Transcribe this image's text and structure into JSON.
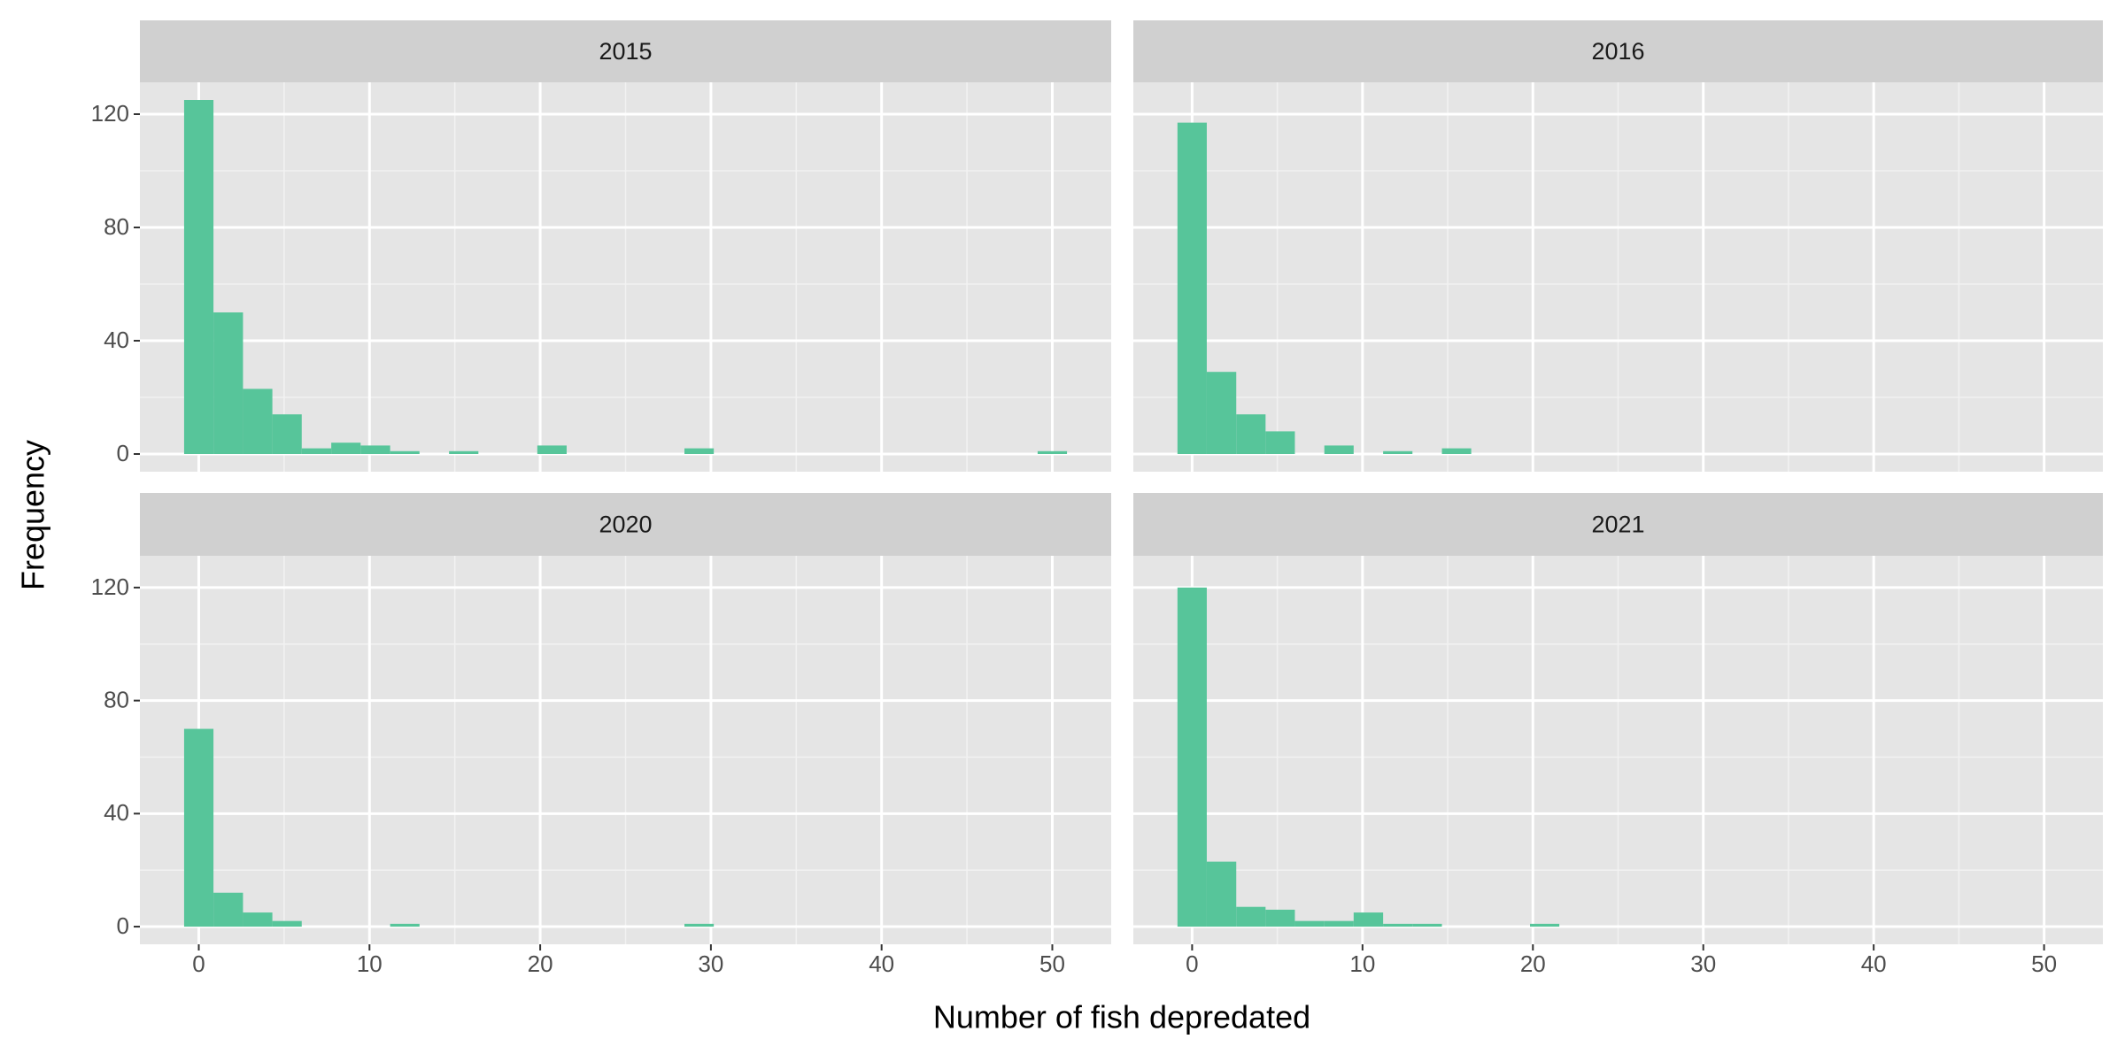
{
  "x_label": "Number of fish depredated",
  "y_label": "Frequency",
  "chart_data": [
    {
      "type": "histogram",
      "title": "2015",
      "color": "#57c59a",
      "bins": [
        -0.86,
        0.86,
        2.59,
        4.31,
        6.03,
        7.76,
        9.48,
        11.21,
        12.93,
        14.66,
        16.38,
        18.1,
        19.83,
        21.55,
        23.28,
        25,
        26.72,
        28.45,
        30.17,
        31.9,
        33.62,
        35.34,
        37.07,
        38.79,
        40.52,
        42.24,
        43.97,
        45.69,
        47.41,
        49.14,
        50.86
      ],
      "values": [
        125,
        50,
        23,
        14,
        2,
        4,
        3,
        1,
        0,
        1,
        0,
        0,
        3,
        0,
        0,
        0,
        0,
        2,
        0,
        0,
        0,
        0,
        0,
        0,
        0,
        0,
        0,
        0,
        0,
        1
      ],
      "xlim": [
        -3.45,
        53.45
      ],
      "xticks": [
        0,
        10,
        20,
        30,
        40,
        50
      ],
      "ylim": [
        -6.25,
        131.25
      ],
      "yticks": [
        0,
        40,
        80,
        120
      ],
      "grid": true
    },
    {
      "type": "histogram",
      "title": "2016",
      "color": "#57c59a",
      "bins": [
        -0.86,
        0.86,
        2.59,
        4.31,
        6.03,
        7.76,
        9.48,
        11.21,
        12.93,
        14.66,
        16.38,
        18.1,
        19.83,
        21.55,
        23.28,
        25,
        26.72,
        28.45,
        30.17,
        31.9,
        33.62,
        35.34,
        37.07,
        38.79,
        40.52,
        42.24,
        43.97,
        45.69,
        47.41,
        49.14,
        50.86
      ],
      "values": [
        117,
        29,
        14,
        8,
        0,
        3,
        0,
        1,
        0,
        2,
        0,
        0,
        0,
        0,
        0,
        0,
        0,
        0,
        0,
        0,
        0,
        0,
        0,
        0,
        0,
        0,
        0,
        0,
        0,
        0
      ],
      "xlim": [
        -3.45,
        53.45
      ],
      "xticks": [
        0,
        10,
        20,
        30,
        40,
        50
      ],
      "ylim": [
        -6.25,
        131.25
      ],
      "yticks": [
        0,
        40,
        80,
        120
      ],
      "grid": true
    },
    {
      "type": "histogram",
      "title": "2020",
      "color": "#57c59a",
      "bins": [
        -0.86,
        0.86,
        2.59,
        4.31,
        6.03,
        7.76,
        9.48,
        11.21,
        12.93,
        14.66,
        16.38,
        18.1,
        19.83,
        21.55,
        23.28,
        25,
        26.72,
        28.45,
        30.17,
        31.9,
        33.62,
        35.34,
        37.07,
        38.79,
        40.52,
        42.24,
        43.97,
        45.69,
        47.41,
        49.14,
        50.86
      ],
      "values": [
        70,
        12,
        5,
        2,
        0,
        0,
        0,
        1,
        0,
        0,
        0,
        0,
        0,
        0,
        0,
        0,
        0,
        1,
        0,
        0,
        0,
        0,
        0,
        0,
        0,
        0,
        0,
        0,
        0,
        0
      ],
      "xlim": [
        -3.45,
        53.45
      ],
      "xticks": [
        0,
        10,
        20,
        30,
        40,
        50
      ],
      "ylim": [
        -6.25,
        131.25
      ],
      "yticks": [
        0,
        40,
        80,
        120
      ],
      "grid": true
    },
    {
      "type": "histogram",
      "title": "2021",
      "color": "#57c59a",
      "bins": [
        -0.86,
        0.86,
        2.59,
        4.31,
        6.03,
        7.76,
        9.48,
        11.21,
        12.93,
        14.66,
        16.38,
        18.1,
        19.83,
        21.55,
        23.28,
        25,
        26.72,
        28.45,
        30.17,
        31.9,
        33.62,
        35.34,
        37.07,
        38.79,
        40.52,
        42.24,
        43.97,
        45.69,
        47.41,
        49.14,
        50.86
      ],
      "values": [
        120,
        23,
        7,
        6,
        2,
        2,
        5,
        1,
        1,
        0,
        0,
        0,
        1,
        0,
        0,
        0,
        0,
        0,
        0,
        0,
        0,
        0,
        0,
        0,
        0,
        0,
        0,
        0,
        0,
        0
      ],
      "xlim": [
        -3.45,
        53.45
      ],
      "xticks": [
        0,
        10,
        20,
        30,
        40,
        50
      ],
      "ylim": [
        -6.25,
        131.25
      ],
      "yticks": [
        0,
        40,
        80,
        120
      ],
      "grid": true
    }
  ]
}
